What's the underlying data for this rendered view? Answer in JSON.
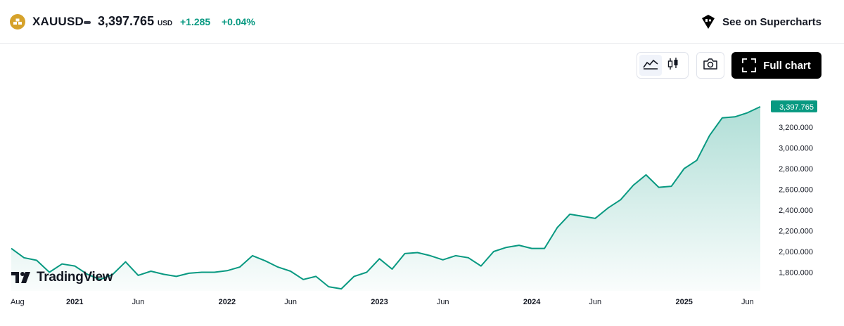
{
  "header": {
    "symbol": "XAUUSD",
    "price": "3,397.765",
    "currency": "USD",
    "change": "+1.285",
    "change_pct": "+0.04%",
    "see_on": "See on Supercharts",
    "logo_icon": "gold-bars-icon",
    "supercharts_icon": "tradingview-shield-icon"
  },
  "toolbar": {
    "area_icon": "area-chart-icon",
    "candles_icon": "candlestick-icon",
    "screenshot_icon": "camera-icon",
    "full_chart_label": "Full chart",
    "full_chart_icon": "expand-icon"
  },
  "branding": {
    "wordmark": "TradingView"
  },
  "colors": {
    "line": "#089981",
    "up": "#089981",
    "accent_gold": "#d6a22b"
  },
  "chart_data": {
    "type": "area",
    "title": "",
    "xlabel": "",
    "ylabel": "",
    "ylim": [
      1620,
      3560
    ],
    "y_ticks": [
      "3,200.000",
      "3,000.000",
      "2,800.000",
      "2,600.000",
      "2,400.000",
      "2,200.000",
      "2,000.000",
      "1,800.000"
    ],
    "y_tick_values": [
      3200,
      3000,
      2800,
      2600,
      2400,
      2200,
      2000,
      1800
    ],
    "last_value_label": "3,397.765",
    "last_value": 3397.765,
    "x_ticks": [
      "Aug",
      "2021",
      "Jun",
      "2022",
      "Jun",
      "2023",
      "Jun",
      "2024",
      "Jun",
      "2025",
      "Jun"
    ],
    "x_tick_values": [
      "2020-08",
      "2021-01",
      "2021-06",
      "2022-01",
      "2022-06",
      "2023-01",
      "2023-06",
      "2024-01",
      "2024-06",
      "2025-01",
      "2025-06"
    ],
    "x_tick_bold": [
      false,
      true,
      false,
      true,
      false,
      true,
      false,
      true,
      false,
      true,
      false
    ],
    "series": [
      {
        "x": [
          "2020-08",
          "2020-09",
          "2020-10",
          "2020-11",
          "2020-12",
          "2021-01",
          "2021-02",
          "2021-03",
          "2021-04",
          "2021-05",
          "2021-06",
          "2021-07",
          "2021-08",
          "2021-09",
          "2021-10",
          "2021-11",
          "2021-12",
          "2022-01",
          "2022-02",
          "2022-03",
          "2022-04",
          "2022-05",
          "2022-06",
          "2022-07",
          "2022-08",
          "2022-09",
          "2022-10",
          "2022-11",
          "2022-12",
          "2023-01",
          "2023-02",
          "2023-03",
          "2023-04",
          "2023-05",
          "2023-06",
          "2023-07",
          "2023-08",
          "2023-09",
          "2023-10",
          "2023-11",
          "2023-12",
          "2024-01",
          "2024-02",
          "2024-03",
          "2024-04",
          "2024-05",
          "2024-06",
          "2024-07",
          "2024-08",
          "2024-09",
          "2024-10",
          "2024-11",
          "2024-12",
          "2025-01",
          "2025-02",
          "2025-03",
          "2025-04",
          "2025-05",
          "2025-06",
          "2025-07"
        ],
        "y": [
          2030,
          1940,
          1915,
          1800,
          1880,
          1860,
          1780,
          1730,
          1780,
          1900,
          1770,
          1810,
          1780,
          1760,
          1790,
          1800,
          1800,
          1815,
          1850,
          1960,
          1910,
          1850,
          1810,
          1730,
          1760,
          1660,
          1640,
          1760,
          1800,
          1930,
          1830,
          1980,
          1990,
          1960,
          1920,
          1960,
          1940,
          1860,
          2000,
          2040,
          2060,
          2030,
          2030,
          2230,
          2360,
          2340,
          2320,
          2420,
          2500,
          2640,
          2740,
          2620,
          2630,
          2800,
          2880,
          3120,
          3290,
          3300,
          3340,
          3397.765
        ]
      }
    ]
  }
}
